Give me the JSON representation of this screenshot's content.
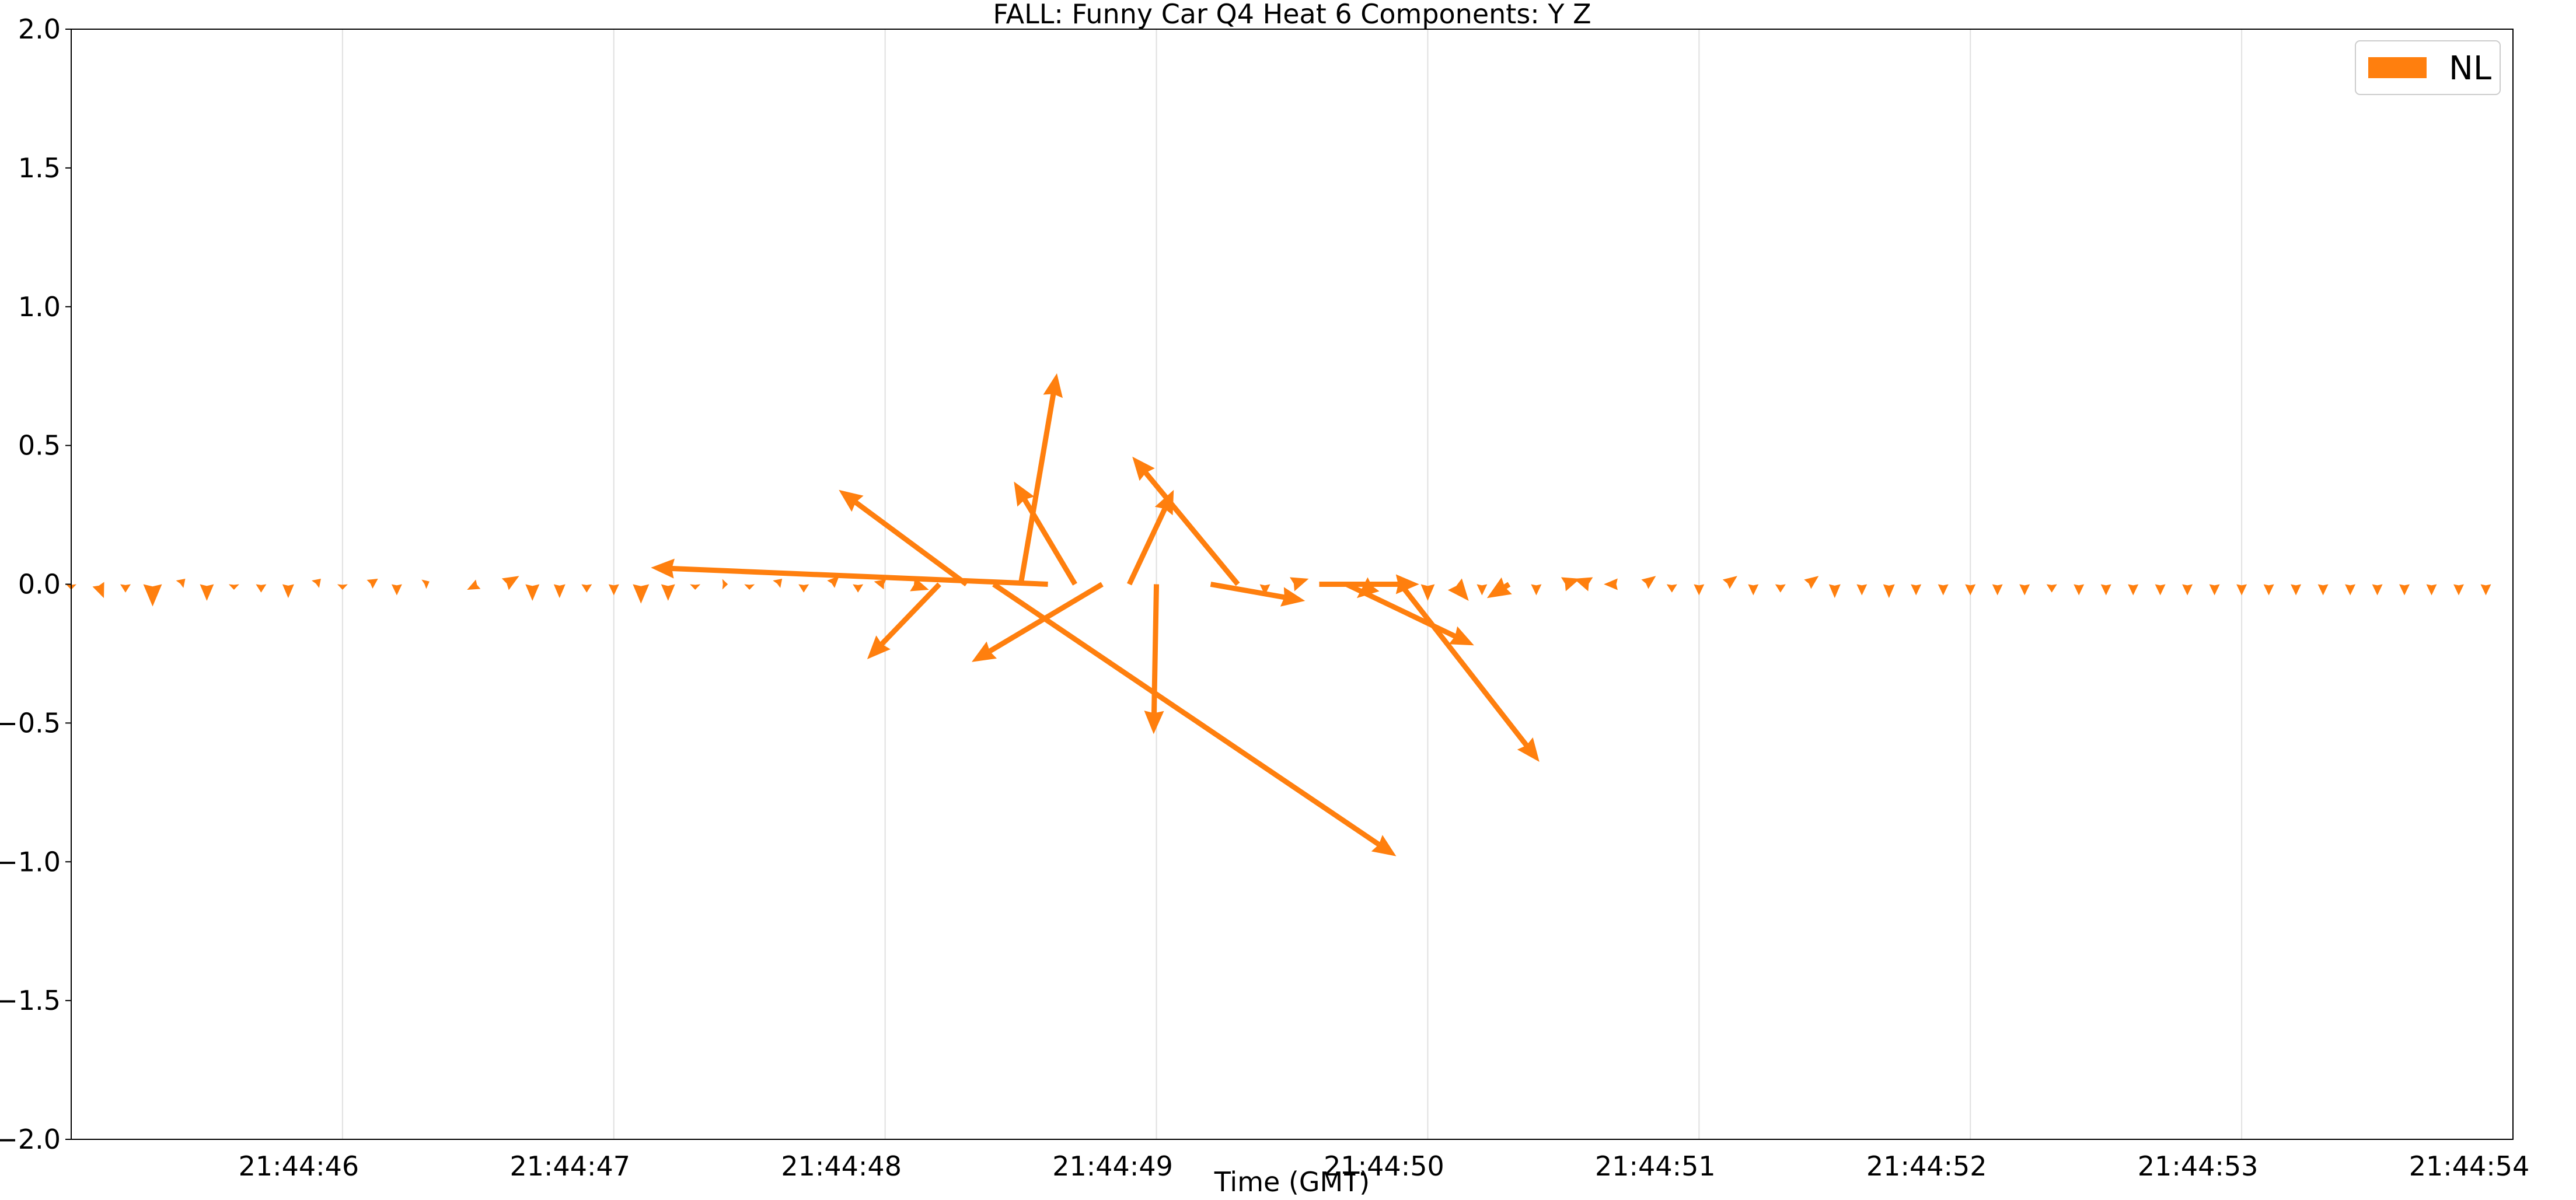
{
  "chart_data": {
    "type": "quiver",
    "title": "FALL: Funny Car Q4 Heat 6 Components: Y Z",
    "xlabel": "Time (GMT)",
    "ylabel": "",
    "xlim": [
      45.0,
      54.0
    ],
    "ylim": [
      -2.0,
      2.0
    ],
    "x_tick_values": [
      46,
      47,
      48,
      49,
      50,
      51,
      52,
      53,
      54
    ],
    "x_tick_labels": [
      "21:44:46",
      "21:44:47",
      "21:44:48",
      "21:44:49",
      "21:44:50",
      "21:44:51",
      "21:44:52",
      "21:44:53",
      "21:44:54"
    ],
    "y_tick_values": [
      2.0,
      1.5,
      1.0,
      0.5,
      0.0,
      -0.5,
      -1.0,
      -1.5,
      -2.0
    ],
    "y_tick_labels": [
      "2.0",
      "1.5",
      "1.0",
      "0.5",
      "0.0",
      "−0.5",
      "−1.0",
      "−1.5",
      "−2.0"
    ],
    "grid": "vertical",
    "legend": {
      "position": "top-right",
      "entries": [
        {
          "name": "NL",
          "color": "#ff7f0e"
        }
      ]
    },
    "series": [
      {
        "name": "NL",
        "color": "#ff7f0e",
        "vectors": [
          {
            "t": 45.0,
            "u": 0.0,
            "v": -0.02
          },
          {
            "t": 45.1,
            "u": 0.02,
            "v": -0.05
          },
          {
            "t": 45.2,
            "u": 0.0,
            "v": -0.03
          },
          {
            "t": 45.3,
            "u": 0.0,
            "v": -0.08
          },
          {
            "t": 45.4,
            "u": 0.02,
            "v": 0.02
          },
          {
            "t": 45.5,
            "u": 0.0,
            "v": -0.06
          },
          {
            "t": 45.6,
            "u": 0.0,
            "v": -0.02
          },
          {
            "t": 45.7,
            "u": 0.0,
            "v": -0.03
          },
          {
            "t": 45.8,
            "u": 0.0,
            "v": -0.05
          },
          {
            "t": 45.9,
            "u": 0.02,
            "v": 0.02
          },
          {
            "t": 46.0,
            "u": 0.0,
            "v": -0.02
          },
          {
            "t": 46.1,
            "u": 0.03,
            "v": 0.02
          },
          {
            "t": 46.2,
            "u": 0.0,
            "v": -0.04
          },
          {
            "t": 46.3,
            "u": 0.02,
            "v": 0.01
          },
          {
            "t": 46.4,
            "u": 0.0,
            "v": 0.0
          },
          {
            "t": 46.5,
            "u": -0.04,
            "v": -0.02
          },
          {
            "t": 46.6,
            "u": 0.05,
            "v": 0.03
          },
          {
            "t": 46.7,
            "u": 0.0,
            "v": -0.06
          },
          {
            "t": 46.8,
            "u": 0.0,
            "v": -0.05
          },
          {
            "t": 46.9,
            "u": 0.0,
            "v": -0.03
          },
          {
            "t": 47.0,
            "u": 0.0,
            "v": -0.04
          },
          {
            "t": 47.1,
            "u": 0.0,
            "v": -0.07
          },
          {
            "t": 47.2,
            "u": 0.0,
            "v": -0.06
          },
          {
            "t": 47.3,
            "u": 0.0,
            "v": -0.02
          },
          {
            "t": 47.4,
            "u": 0.02,
            "v": 0.0
          },
          {
            "t": 47.5,
            "u": 0.0,
            "v": -0.02
          },
          {
            "t": 47.6,
            "u": 0.02,
            "v": 0.02
          },
          {
            "t": 47.7,
            "u": 0.0,
            "v": -0.03
          },
          {
            "t": 47.8,
            "u": 0.03,
            "v": 0.03
          },
          {
            "t": 47.9,
            "u": 0.0,
            "v": -0.03
          },
          {
            "t": 48.0,
            "u": -0.04,
            "v": 0.01
          },
          {
            "t": 48.1,
            "u": 0.06,
            "v": -0.02
          },
          {
            "t": 48.2,
            "u": -0.26,
            "v": -0.27
          },
          {
            "t": 48.3,
            "u": -0.46,
            "v": 0.34
          },
          {
            "t": 48.4,
            "u": 1.45,
            "v": -0.98
          },
          {
            "t": 48.5,
            "u": 0.13,
            "v": 0.76
          },
          {
            "t": 48.6,
            "u": -1.43,
            "v": 0.06
          },
          {
            "t": 48.7,
            "u": -0.22,
            "v": 0.37
          },
          {
            "t": 48.8,
            "u": -0.47,
            "v": -0.28
          },
          {
            "t": 48.9,
            "u": 0.16,
            "v": 0.34
          },
          {
            "t": 49.0,
            "u": -0.01,
            "v": -0.54
          },
          {
            "t": 49.2,
            "u": 0.34,
            "v": -0.06
          },
          {
            "t": 49.3,
            "u": -0.38,
            "v": 0.46
          },
          {
            "t": 49.4,
            "u": 0.0,
            "v": -0.04
          },
          {
            "t": 49.5,
            "u": 0.06,
            "v": 0.02
          },
          {
            "t": 49.6,
            "u": 0.36,
            "v": 0.0
          },
          {
            "t": 49.7,
            "u": 0.46,
            "v": -0.22
          },
          {
            "t": 49.8,
            "u": -0.06,
            "v": -0.05
          },
          {
            "t": 49.9,
            "u": 0.5,
            "v": -0.64
          },
          {
            "t": 50.0,
            "u": 0.0,
            "v": -0.06
          },
          {
            "t": 50.1,
            "u": 0.05,
            "v": -0.06
          },
          {
            "t": 50.2,
            "u": 0.0,
            "v": -0.04
          },
          {
            "t": 50.3,
            "u": -0.08,
            "v": -0.05
          },
          {
            "t": 50.4,
            "u": 0.0,
            "v": -0.04
          },
          {
            "t": 50.5,
            "u": 0.06,
            "v": 0.02
          },
          {
            "t": 50.6,
            "u": -0.06,
            "v": 0.02
          },
          {
            "t": 50.7,
            "u": -0.05,
            "v": 0.0
          },
          {
            "t": 50.8,
            "u": 0.04,
            "v": 0.03
          },
          {
            "t": 50.9,
            "u": 0.0,
            "v": -0.03
          },
          {
            "t": 51.0,
            "u": 0.0,
            "v": -0.04
          },
          {
            "t": 51.1,
            "u": 0.04,
            "v": 0.03
          },
          {
            "t": 51.2,
            "u": 0.0,
            "v": -0.04
          },
          {
            "t": 51.3,
            "u": 0.0,
            "v": -0.03
          },
          {
            "t": 51.4,
            "u": 0.04,
            "v": 0.03
          },
          {
            "t": 51.5,
            "u": 0.0,
            "v": -0.05
          },
          {
            "t": 51.6,
            "u": 0.0,
            "v": -0.04
          },
          {
            "t": 51.7,
            "u": 0.0,
            "v": -0.05
          },
          {
            "t": 51.8,
            "u": 0.0,
            "v": -0.04
          },
          {
            "t": 51.9,
            "u": 0.0,
            "v": -0.04
          },
          {
            "t": 52.0,
            "u": 0.0,
            "v": -0.04
          },
          {
            "t": 52.1,
            "u": 0.0,
            "v": -0.04
          },
          {
            "t": 52.2,
            "u": 0.0,
            "v": -0.04
          },
          {
            "t": 52.3,
            "u": 0.0,
            "v": -0.03
          },
          {
            "t": 52.4,
            "u": 0.0,
            "v": -0.04
          },
          {
            "t": 52.5,
            "u": 0.0,
            "v": -0.04
          },
          {
            "t": 52.6,
            "u": 0.0,
            "v": -0.04
          },
          {
            "t": 52.7,
            "u": 0.0,
            "v": -0.04
          },
          {
            "t": 52.8,
            "u": 0.0,
            "v": -0.04
          },
          {
            "t": 52.9,
            "u": 0.0,
            "v": -0.04
          },
          {
            "t": 53.0,
            "u": 0.0,
            "v": -0.04
          },
          {
            "t": 53.1,
            "u": 0.0,
            "v": -0.04
          },
          {
            "t": 53.2,
            "u": 0.0,
            "v": -0.04
          },
          {
            "t": 53.3,
            "u": 0.0,
            "v": -0.04
          },
          {
            "t": 53.4,
            "u": 0.0,
            "v": -0.04
          },
          {
            "t": 53.5,
            "u": 0.0,
            "v": -0.04
          },
          {
            "t": 53.6,
            "u": 0.0,
            "v": -0.04
          },
          {
            "t": 53.7,
            "u": 0.0,
            "v": -0.04
          },
          {
            "t": 53.8,
            "u": 0.0,
            "v": -0.04
          },
          {
            "t": 53.9,
            "u": 0.0,
            "v": -0.04
          }
        ]
      }
    ]
  }
}
